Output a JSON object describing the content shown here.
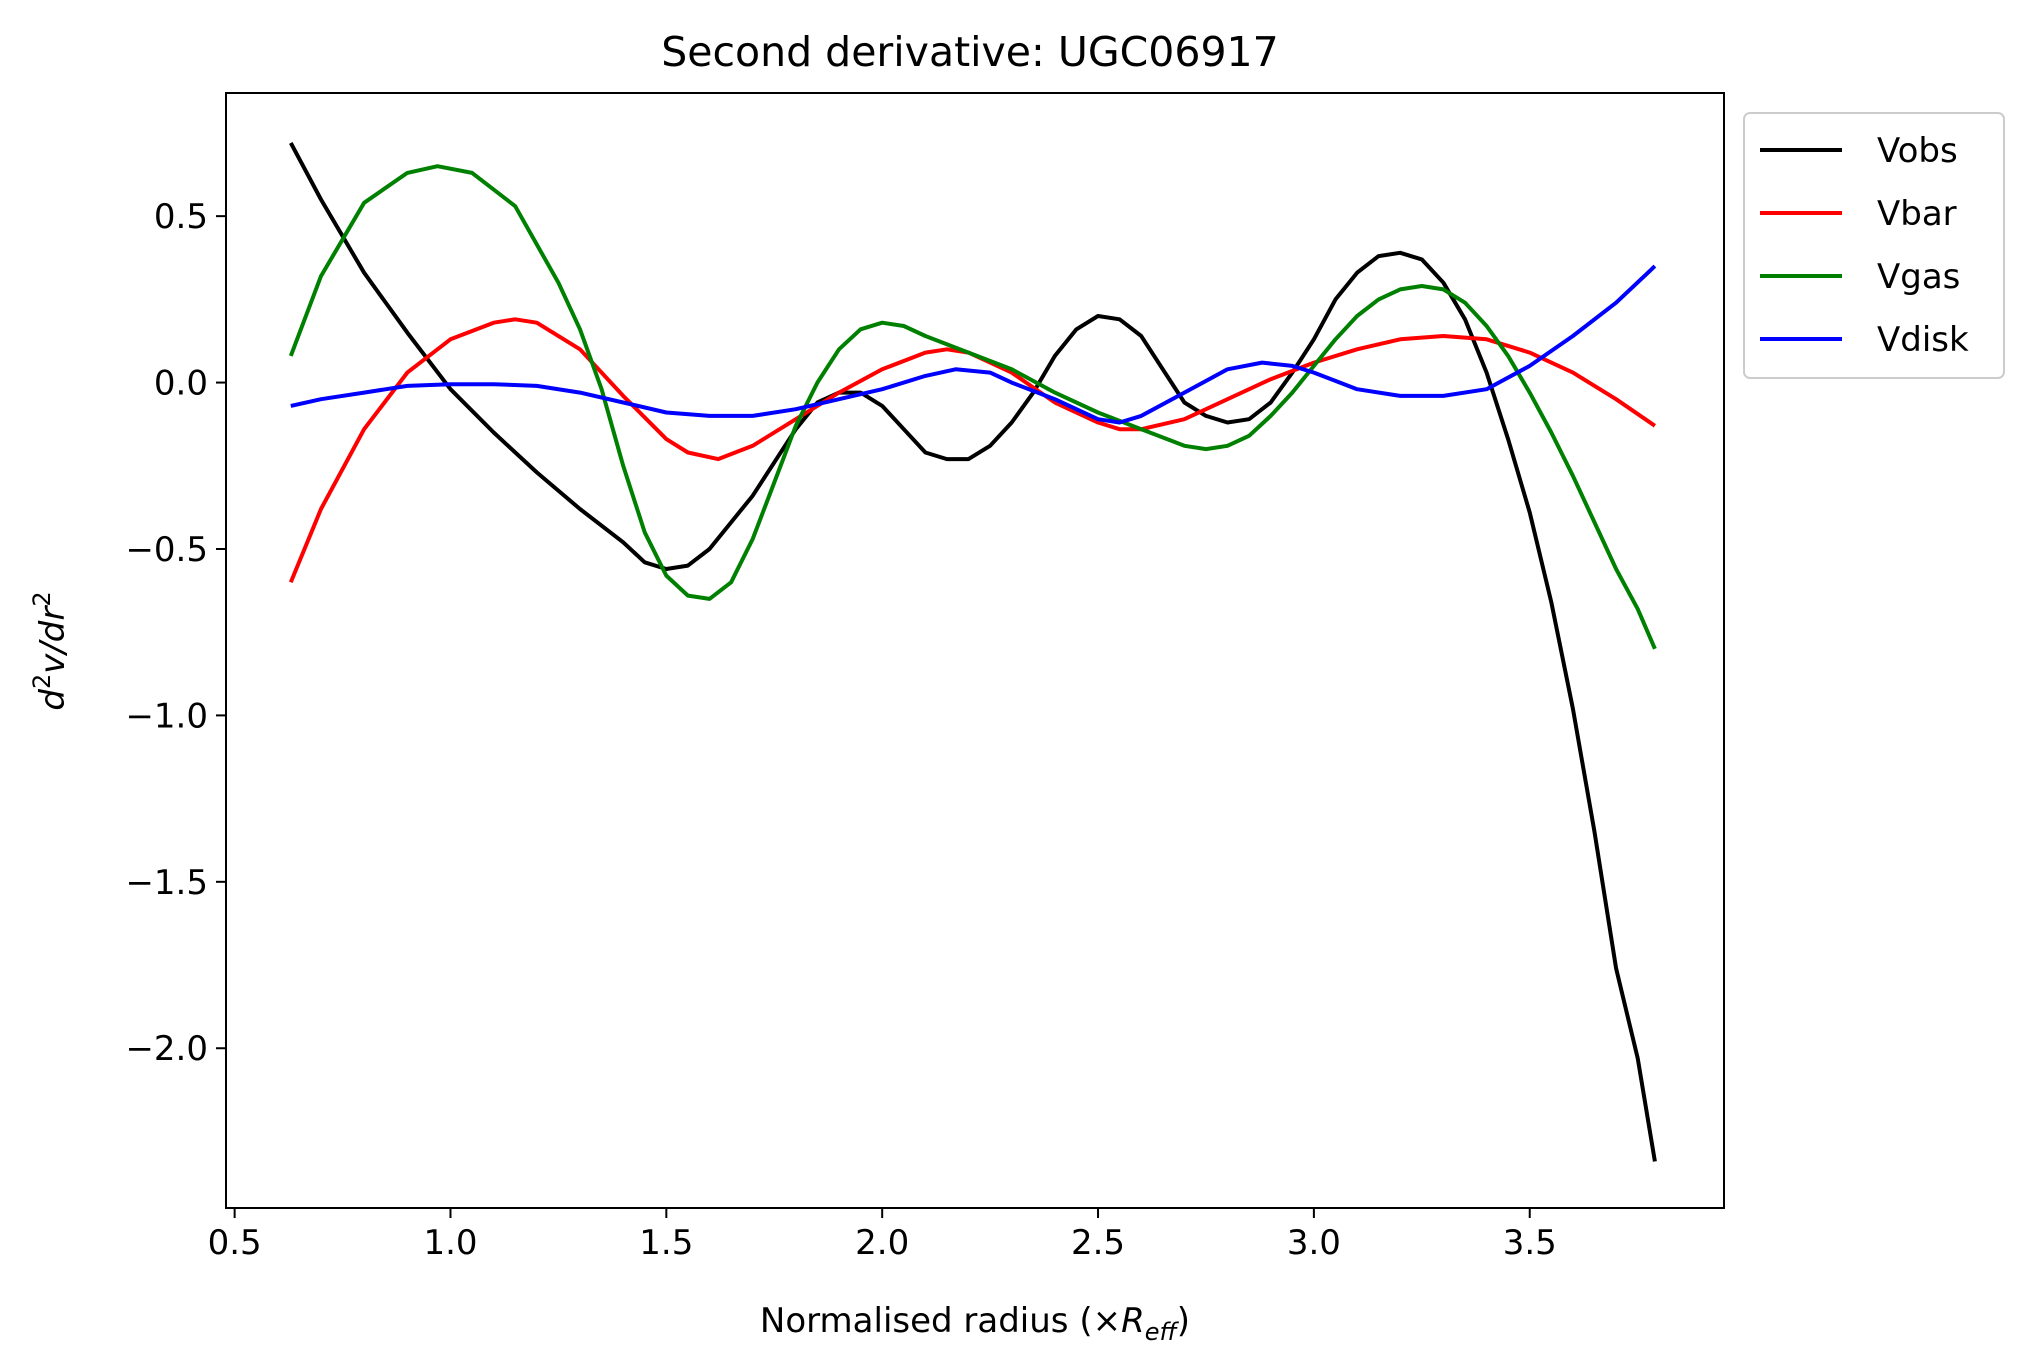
{
  "chart_data": {
    "type": "line",
    "title": "Second derivative: UGC06917",
    "xlabel": {
      "prefix": "Normalised radius (×",
      "var": "R",
      "sub": "eff",
      "suffix": ")"
    },
    "ylabel": {
      "d1": "d",
      "sup1": "2",
      "mid": "v/dr",
      "sup2": "2"
    },
    "xlim": [
      0.48,
      3.95
    ],
    "ylim": [
      -2.48,
      0.87
    ],
    "xticks": [
      {
        "value": 0.5,
        "label": "0.5"
      },
      {
        "value": 1.0,
        "label": "1.0"
      },
      {
        "value": 1.5,
        "label": "1.5"
      },
      {
        "value": 2.0,
        "label": "2.0"
      },
      {
        "value": 2.5,
        "label": "2.5"
      },
      {
        "value": 3.0,
        "label": "3.0"
      },
      {
        "value": 3.5,
        "label": "3.5"
      }
    ],
    "yticks": [
      {
        "value": 0.5,
        "label": "0.5"
      },
      {
        "value": 0.0,
        "label": "0.0"
      },
      {
        "value": -0.5,
        "label": "−0.5"
      },
      {
        "value": -1.0,
        "label": "−1.0"
      },
      {
        "value": -1.5,
        "label": "−1.5"
      },
      {
        "value": -2.0,
        "label": "−2.0"
      }
    ],
    "grid": false,
    "legend_position": "outside-top-right",
    "series": [
      {
        "name": "Vobs",
        "color": "#000000",
        "points": [
          [
            0.63,
            0.72
          ],
          [
            0.7,
            0.55
          ],
          [
            0.8,
            0.33
          ],
          [
            0.9,
            0.15
          ],
          [
            1.0,
            -0.02
          ],
          [
            1.1,
            -0.15
          ],
          [
            1.2,
            -0.27
          ],
          [
            1.3,
            -0.38
          ],
          [
            1.4,
            -0.48
          ],
          [
            1.45,
            -0.54
          ],
          [
            1.5,
            -0.56
          ],
          [
            1.55,
            -0.55
          ],
          [
            1.6,
            -0.5
          ],
          [
            1.7,
            -0.34
          ],
          [
            1.8,
            -0.14
          ],
          [
            1.85,
            -0.06
          ],
          [
            1.9,
            -0.03
          ],
          [
            1.95,
            -0.03
          ],
          [
            2.0,
            -0.07
          ],
          [
            2.05,
            -0.14
          ],
          [
            2.1,
            -0.21
          ],
          [
            2.15,
            -0.23
          ],
          [
            2.2,
            -0.23
          ],
          [
            2.25,
            -0.19
          ],
          [
            2.3,
            -0.12
          ],
          [
            2.35,
            -0.03
          ],
          [
            2.4,
            0.08
          ],
          [
            2.45,
            0.16
          ],
          [
            2.5,
            0.2
          ],
          [
            2.55,
            0.19
          ],
          [
            2.6,
            0.14
          ],
          [
            2.65,
            0.04
          ],
          [
            2.7,
            -0.06
          ],
          [
            2.75,
            -0.1
          ],
          [
            2.8,
            -0.12
          ],
          [
            2.85,
            -0.11
          ],
          [
            2.9,
            -0.06
          ],
          [
            2.95,
            0.03
          ],
          [
            3.0,
            0.13
          ],
          [
            3.05,
            0.25
          ],
          [
            3.1,
            0.33
          ],
          [
            3.15,
            0.38
          ],
          [
            3.2,
            0.39
          ],
          [
            3.25,
            0.37
          ],
          [
            3.3,
            0.3
          ],
          [
            3.35,
            0.19
          ],
          [
            3.4,
            0.03
          ],
          [
            3.45,
            -0.17
          ],
          [
            3.5,
            -0.39
          ],
          [
            3.55,
            -0.66
          ],
          [
            3.6,
            -0.98
          ],
          [
            3.65,
            -1.35
          ],
          [
            3.7,
            -1.76
          ],
          [
            3.75,
            -2.03
          ],
          [
            3.79,
            -2.34
          ]
        ]
      },
      {
        "name": "Vbar",
        "color": "#ff0000",
        "points": [
          [
            0.63,
            -0.6
          ],
          [
            0.7,
            -0.38
          ],
          [
            0.8,
            -0.14
          ],
          [
            0.9,
            0.03
          ],
          [
            1.0,
            0.13
          ],
          [
            1.1,
            0.18
          ],
          [
            1.15,
            0.19
          ],
          [
            1.2,
            0.18
          ],
          [
            1.3,
            0.1
          ],
          [
            1.4,
            -0.04
          ],
          [
            1.5,
            -0.17
          ],
          [
            1.55,
            -0.21
          ],
          [
            1.62,
            -0.23
          ],
          [
            1.7,
            -0.19
          ],
          [
            1.8,
            -0.11
          ],
          [
            1.9,
            -0.03
          ],
          [
            2.0,
            0.04
          ],
          [
            2.1,
            0.09
          ],
          [
            2.15,
            0.1
          ],
          [
            2.2,
            0.09
          ],
          [
            2.3,
            0.03
          ],
          [
            2.4,
            -0.06
          ],
          [
            2.5,
            -0.12
          ],
          [
            2.55,
            -0.14
          ],
          [
            2.6,
            -0.14
          ],
          [
            2.7,
            -0.11
          ],
          [
            2.8,
            -0.05
          ],
          [
            2.9,
            0.01
          ],
          [
            3.0,
            0.06
          ],
          [
            3.1,
            0.1
          ],
          [
            3.2,
            0.13
          ],
          [
            3.3,
            0.14
          ],
          [
            3.4,
            0.13
          ],
          [
            3.5,
            0.09
          ],
          [
            3.6,
            0.03
          ],
          [
            3.7,
            -0.05
          ],
          [
            3.79,
            -0.13
          ]
        ]
      },
      {
        "name": "Vgas",
        "color": "#008000",
        "points": [
          [
            0.63,
            0.08
          ],
          [
            0.7,
            0.32
          ],
          [
            0.8,
            0.54
          ],
          [
            0.9,
            0.63
          ],
          [
            0.97,
            0.65
          ],
          [
            1.05,
            0.63
          ],
          [
            1.15,
            0.53
          ],
          [
            1.25,
            0.3
          ],
          [
            1.3,
            0.16
          ],
          [
            1.35,
            -0.02
          ],
          [
            1.4,
            -0.25
          ],
          [
            1.45,
            -0.45
          ],
          [
            1.5,
            -0.58
          ],
          [
            1.55,
            -0.64
          ],
          [
            1.6,
            -0.65
          ],
          [
            1.65,
            -0.6
          ],
          [
            1.7,
            -0.47
          ],
          [
            1.75,
            -0.3
          ],
          [
            1.8,
            -0.13
          ],
          [
            1.85,
            0.0
          ],
          [
            1.9,
            0.1
          ],
          [
            1.95,
            0.16
          ],
          [
            2.0,
            0.18
          ],
          [
            2.05,
            0.17
          ],
          [
            2.1,
            0.14
          ],
          [
            2.2,
            0.09
          ],
          [
            2.3,
            0.04
          ],
          [
            2.4,
            -0.03
          ],
          [
            2.5,
            -0.09
          ],
          [
            2.6,
            -0.14
          ],
          [
            2.7,
            -0.19
          ],
          [
            2.75,
            -0.2
          ],
          [
            2.8,
            -0.19
          ],
          [
            2.85,
            -0.16
          ],
          [
            2.9,
            -0.1
          ],
          [
            2.95,
            -0.03
          ],
          [
            3.0,
            0.05
          ],
          [
            3.05,
            0.13
          ],
          [
            3.1,
            0.2
          ],
          [
            3.15,
            0.25
          ],
          [
            3.2,
            0.28
          ],
          [
            3.25,
            0.29
          ],
          [
            3.3,
            0.28
          ],
          [
            3.35,
            0.24
          ],
          [
            3.4,
            0.17
          ],
          [
            3.45,
            0.08
          ],
          [
            3.5,
            -0.03
          ],
          [
            3.55,
            -0.15
          ],
          [
            3.6,
            -0.28
          ],
          [
            3.65,
            -0.42
          ],
          [
            3.7,
            -0.56
          ],
          [
            3.75,
            -0.68
          ],
          [
            3.79,
            -0.8
          ]
        ]
      },
      {
        "name": "Vdisk",
        "color": "#0000ff",
        "points": [
          [
            0.63,
            -0.07
          ],
          [
            0.7,
            -0.05
          ],
          [
            0.8,
            -0.03
          ],
          [
            0.9,
            -0.01
          ],
          [
            1.0,
            -0.005
          ],
          [
            1.1,
            -0.005
          ],
          [
            1.2,
            -0.01
          ],
          [
            1.3,
            -0.03
          ],
          [
            1.4,
            -0.06
          ],
          [
            1.5,
            -0.09
          ],
          [
            1.6,
            -0.1
          ],
          [
            1.7,
            -0.1
          ],
          [
            1.8,
            -0.08
          ],
          [
            1.9,
            -0.05
          ],
          [
            2.0,
            -0.02
          ],
          [
            2.1,
            0.02
          ],
          [
            2.17,
            0.04
          ],
          [
            2.25,
            0.03
          ],
          [
            2.3,
            0.0
          ],
          [
            2.4,
            -0.05
          ],
          [
            2.5,
            -0.11
          ],
          [
            2.55,
            -0.12
          ],
          [
            2.6,
            -0.1
          ],
          [
            2.7,
            -0.03
          ],
          [
            2.8,
            0.04
          ],
          [
            2.88,
            0.06
          ],
          [
            2.95,
            0.05
          ],
          [
            3.0,
            0.03
          ],
          [
            3.1,
            -0.02
          ],
          [
            3.2,
            -0.04
          ],
          [
            3.3,
            -0.04
          ],
          [
            3.4,
            -0.02
          ],
          [
            3.5,
            0.05
          ],
          [
            3.6,
            0.14
          ],
          [
            3.7,
            0.24
          ],
          [
            3.79,
            0.35
          ]
        ]
      }
    ]
  }
}
